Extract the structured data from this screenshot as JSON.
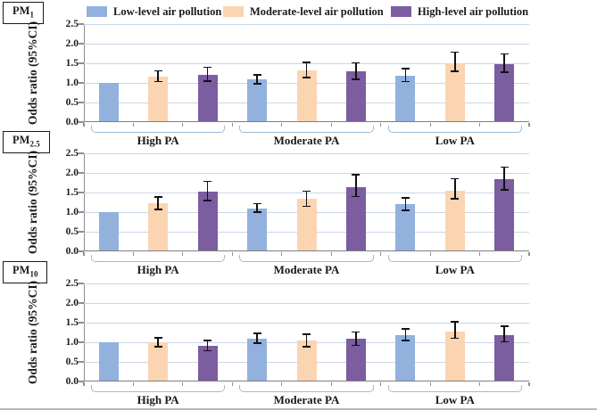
{
  "figure": {
    "colors": {
      "low": "#92b1dd",
      "moderate": "#fbd4b1",
      "high": "#7b5da0",
      "gridline": "#c8d7e8",
      "axis": "#8e8e8e",
      "bracket": "#9dbcd8",
      "error_bar": "#111111"
    },
    "legend": [
      {
        "key": "low",
        "label": "Low-level air pollution"
      },
      {
        "key": "moderate",
        "label": "Moderate-level air pollution"
      },
      {
        "key": "high",
        "label": "High-level air pollution"
      }
    ]
  },
  "chart_data": [
    {
      "type": "bar",
      "panel_label": "PM",
      "panel_sub": "1",
      "ylabel": "Odds ratio (95%CI)",
      "ylim": [
        0,
        2.5
      ],
      "yticklabels": [
        "0.0",
        "0.5",
        "1.0",
        "1.5",
        "2.0",
        "2.5"
      ],
      "groups": [
        "High PA",
        "Moderate PA",
        "Low PA"
      ],
      "series": [
        {
          "name": "Low-level air pollution",
          "values": [
            1.0,
            1.09,
            1.18
          ],
          "ci_low": [
            null,
            0.98,
            1.03
          ],
          "ci_high": [
            null,
            1.21,
            1.36
          ]
        },
        {
          "name": "Moderate-level air pollution",
          "values": [
            1.15,
            1.32,
            1.51
          ],
          "ci_low": [
            1.03,
            1.14,
            1.3
          ],
          "ci_high": [
            1.31,
            1.52,
            1.78
          ]
        },
        {
          "name": "High-level air pollution",
          "values": [
            1.2,
            1.3,
            1.48
          ],
          "ci_low": [
            1.05,
            1.09,
            1.27
          ],
          "ci_high": [
            1.4,
            1.51,
            1.74
          ]
        }
      ]
    },
    {
      "type": "bar",
      "panel_label": "PM",
      "panel_sub": "2.5",
      "ylabel": "Odds ratio (95%CI)",
      "ylim": [
        0,
        2.5
      ],
      "yticklabels": [
        "0.0",
        "0.5",
        "1.0",
        "1.5",
        "2.0",
        "2.5"
      ],
      "groups": [
        "High PA",
        "Moderate PA",
        "Low PA"
      ],
      "series": [
        {
          "name": "Low-level air pollution",
          "values": [
            1.0,
            1.1,
            1.2
          ],
          "ci_low": [
            null,
            1.0,
            1.04
          ],
          "ci_high": [
            null,
            1.22,
            1.37
          ]
        },
        {
          "name": "Moderate-level air pollution",
          "values": [
            1.22,
            1.35,
            1.55
          ],
          "ci_low": [
            1.07,
            1.15,
            1.34
          ],
          "ci_high": [
            1.38,
            1.53,
            1.85
          ]
        },
        {
          "name": "High-level air pollution",
          "values": [
            1.52,
            1.63,
            1.83
          ],
          "ci_low": [
            1.3,
            1.4,
            1.57
          ],
          "ci_high": [
            1.78,
            1.95,
            2.15
          ]
        }
      ]
    },
    {
      "type": "bar",
      "panel_label": "PM",
      "panel_sub": "10",
      "ylabel": "Odds ratio (95%CI)",
      "ylim": [
        0,
        2.5
      ],
      "yticklabels": [
        "0.0",
        "0.5",
        "1.0",
        "1.5",
        "2.0",
        "2.5"
      ],
      "groups": [
        "High PA",
        "Moderate PA",
        "Low PA"
      ],
      "series": [
        {
          "name": "Low-level air pollution",
          "values": [
            1.0,
            1.1,
            1.18
          ],
          "ci_low": [
            null,
            0.98,
            1.05
          ],
          "ci_high": [
            null,
            1.23,
            1.34
          ]
        },
        {
          "name": "Moderate-level air pollution",
          "values": [
            1.0,
            1.05,
            1.28
          ],
          "ci_low": [
            0.88,
            0.89,
            1.1
          ],
          "ci_high": [
            1.12,
            1.21,
            1.52
          ]
        },
        {
          "name": "High-level air pollution",
          "values": [
            0.91,
            1.08,
            1.19
          ],
          "ci_low": [
            0.78,
            0.92,
            1.01
          ],
          "ci_high": [
            1.05,
            1.26,
            1.41
          ]
        }
      ]
    }
  ]
}
